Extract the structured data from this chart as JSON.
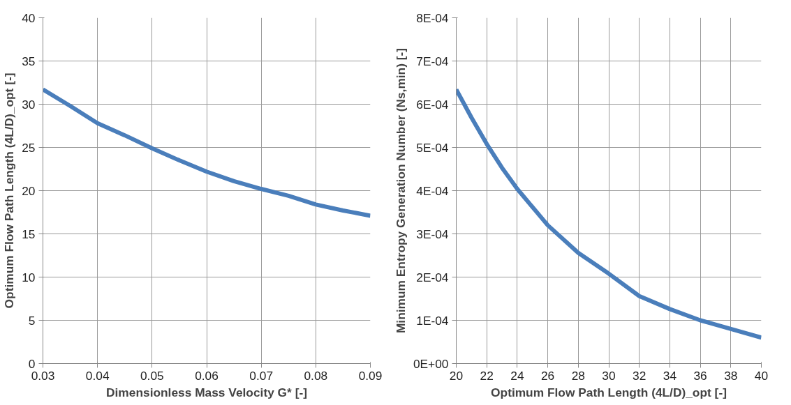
{
  "chart_data": [
    {
      "type": "line",
      "xlabel": "Dimensionless Mass Velocity G* [-]",
      "ylabel": "Optimum Flow Path Length (4L/D)_opt [-]",
      "x": [
        0.03,
        0.035,
        0.04,
        0.045,
        0.05,
        0.055,
        0.06,
        0.065,
        0.07,
        0.075,
        0.08,
        0.085,
        0.09
      ],
      "series": [
        {
          "color": "#4a7ebb",
          "values": [
            31.7,
            29.8,
            27.8,
            26.4,
            24.9,
            23.5,
            22.2,
            21.1,
            20.2,
            19.4,
            18.4,
            17.7,
            17.1
          ]
        }
      ],
      "xlim": [
        0.03,
        0.09
      ],
      "xticks": [
        0.03,
        0.04,
        0.05,
        0.06,
        0.07,
        0.08,
        0.09
      ],
      "ylim": [
        0,
        40
      ],
      "yticks": [
        0,
        5,
        10,
        15,
        20,
        25,
        30,
        35,
        40
      ],
      "grid": true,
      "marker": "none",
      "line_style": "solid"
    },
    {
      "type": "line",
      "xlabel": "Optimum Flow Path Length (4L/D)_opt [-]",
      "ylabel": "Minimum Entropy Generation Number (Ns,min) [-]",
      "x": [
        20,
        21,
        22,
        23,
        24,
        26,
        28,
        30,
        32,
        34,
        36,
        38,
        40
      ],
      "series": [
        {
          "color": "#4a7ebb",
          "values": [
            0.000634,
            0.000569,
            0.000508,
            0.000453,
            0.000404,
            0.00032,
            0.000256,
            0.000208,
            0.000156,
            0.000126,
            0.0001,
            8e-05,
            6e-05
          ]
        }
      ],
      "xlim": [
        20,
        40
      ],
      "xticks": [
        20,
        22,
        24,
        26,
        28,
        30,
        32,
        34,
        36,
        38,
        40
      ],
      "ylim": [
        0,
        0.0008
      ],
      "yticks": [
        {
          "value": 0,
          "label": "0E+00"
        },
        {
          "value": 0.0001,
          "label": "1E-04"
        },
        {
          "value": 0.0002,
          "label": "2E-04"
        },
        {
          "value": 0.0003,
          "label": "3E-04"
        },
        {
          "value": 0.0004,
          "label": "4E-04"
        },
        {
          "value": 0.0005,
          "label": "5E-04"
        },
        {
          "value": 0.0006,
          "label": "6E-04"
        },
        {
          "value": 0.0007,
          "label": "7E-04"
        },
        {
          "value": 0.0008,
          "label": "8E-04"
        }
      ],
      "grid": true,
      "marker": "none",
      "line_style": "solid"
    }
  ]
}
